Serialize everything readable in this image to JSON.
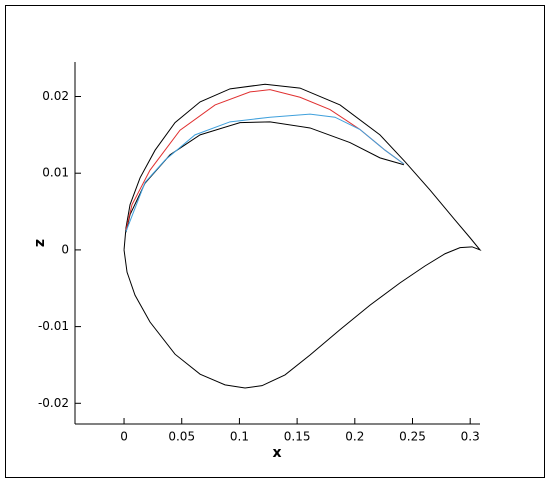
{
  "chart_data": {
    "type": "line",
    "x_label": "x",
    "y_label": "z",
    "xlim": [
      -0.0425,
      0.3085
    ],
    "ylim": [
      -0.0227,
      0.0245
    ],
    "xticks": [
      0,
      0.05,
      0.1,
      0.15,
      0.2,
      0.25,
      0.3
    ],
    "yticks": [
      -0.02,
      -0.01,
      0,
      0.01,
      0.02
    ],
    "series": [
      {
        "color": "#000000",
        "x": [
          0,
          0.0017,
          0.0052,
          0.0139,
          0.0269,
          0.0442,
          0.0659,
          0.0919,
          0.1222,
          0.1525,
          0.1872,
          0.2218,
          0.2435,
          0.2652,
          0.2868,
          0.2998,
          0.3085,
          0.3016,
          0.2912,
          0.2782,
          0.2608,
          0.2392,
          0.2132,
          0.1872,
          0.1612,
          0.1395,
          0.1196,
          0.1049,
          0.0875,
          0.0659,
          0.0442,
          0.0225,
          0.0095,
          0.0026,
          0
        ],
        "values": [
          0,
          0.0029,
          0.0059,
          0.0094,
          0.013,
          0.0166,
          0.0193,
          0.021,
          0.0216,
          0.0211,
          0.0189,
          0.015,
          0.0115,
          0.0078,
          0.0039,
          0.0016,
          0,
          0.0004,
          0.0003,
          -0.0005,
          -0.0021,
          -0.0043,
          -0.0072,
          -0.0104,
          -0.0137,
          -0.0163,
          -0.0177,
          -0.018,
          -0.0176,
          -0.0162,
          -0.0136,
          -0.0094,
          -0.0059,
          -0.0029,
          0
        ]
      },
      {
        "color": "#000000",
        "x": [
          0.0017,
          0.0052,
          0.0182,
          0.0399,
          0.0659,
          0.1005,
          0.1265,
          0.1612,
          0.1958,
          0.2218,
          0.2426
        ],
        "values": [
          0.0023,
          0.0046,
          0.0087,
          0.0124,
          0.015,
          0.0166,
          0.0167,
          0.0159,
          0.014,
          0.012,
          0.0111
        ]
      },
      {
        "color": "#e03030",
        "x": [
          0.0017,
          0.0069,
          0.0225,
          0.0485,
          0.0789,
          0.1092,
          0.1265,
          0.1525,
          0.1785,
          0.2045,
          0.2262,
          0.2426
        ],
        "values": [
          0.0026,
          0.0059,
          0.0104,
          0.0156,
          0.0189,
          0.0206,
          0.0209,
          0.0199,
          0.0183,
          0.0157,
          0.013,
          0.0112
        ]
      },
      {
        "color": "#3fa0dc",
        "x": [
          0.0017,
          0.0182,
          0.0355,
          0.0615,
          0.0919,
          0.1265,
          0.1612,
          0.1828,
          0.2045,
          0.2262,
          0.2426
        ],
        "values": [
          0.0024,
          0.0088,
          0.0117,
          0.015,
          0.0167,
          0.0173,
          0.0177,
          0.0173,
          0.0157,
          0.013,
          0.0112
        ]
      }
    ]
  }
}
